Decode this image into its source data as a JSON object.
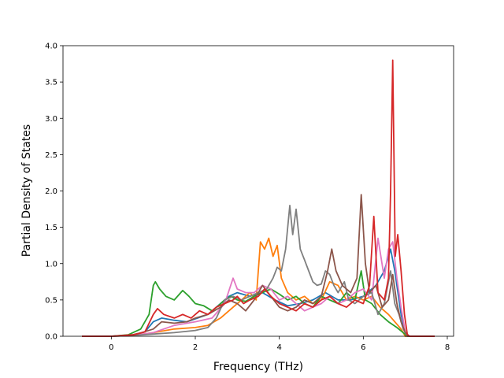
{
  "chart_data": {
    "type": "line",
    "title": "",
    "xlabel": "Frequency (THz)",
    "ylabel": "Partial Density of States",
    "xlim": [
      -1.15,
      8.15
    ],
    "ylim": [
      0,
      4.0
    ],
    "xticks": [
      0,
      2,
      4,
      6,
      8
    ],
    "xtick_labels": [
      "0",
      "2",
      "4",
      "6",
      "8"
    ],
    "yticks": [
      0.0,
      0.5,
      1.0,
      1.5,
      2.0,
      2.5,
      3.0,
      3.5,
      4.0
    ],
    "ytick_labels": [
      "0.0",
      "0.5",
      "1.0",
      "1.5",
      "2.0",
      "2.5",
      "3.0",
      "3.5",
      "4.0"
    ],
    "grid": false,
    "legend": "none",
    "series": [
      {
        "color": "#1f77b4",
        "points": [
          [
            -0.7,
            0
          ],
          [
            0,
            0
          ],
          [
            0.5,
            0.02
          ],
          [
            0.8,
            0.06
          ],
          [
            1.0,
            0.2
          ],
          [
            1.2,
            0.25
          ],
          [
            1.5,
            0.22
          ],
          [
            1.8,
            0.2
          ],
          [
            2.0,
            0.24
          ],
          [
            2.3,
            0.3
          ],
          [
            2.5,
            0.4
          ],
          [
            2.8,
            0.55
          ],
          [
            3.0,
            0.6
          ],
          [
            3.3,
            0.55
          ],
          [
            3.6,
            0.6
          ],
          [
            3.9,
            0.5
          ],
          [
            4.2,
            0.42
          ],
          [
            4.5,
            0.45
          ],
          [
            4.8,
            0.5
          ],
          [
            5.1,
            0.6
          ],
          [
            5.4,
            0.5
          ],
          [
            5.7,
            0.5
          ],
          [
            6.0,
            0.55
          ],
          [
            6.3,
            0.7
          ],
          [
            6.5,
            0.9
          ],
          [
            6.65,
            1.2
          ],
          [
            6.75,
            0.9
          ],
          [
            6.9,
            0.3
          ],
          [
            7.0,
            0.05
          ],
          [
            7.1,
            0
          ],
          [
            7.7,
            0
          ]
        ]
      },
      {
        "color": "#ff7f0e",
        "points": [
          [
            -0.7,
            0
          ],
          [
            0,
            0
          ],
          [
            0.5,
            0.01
          ],
          [
            1.0,
            0.05
          ],
          [
            1.5,
            0.1
          ],
          [
            2.0,
            0.12
          ],
          [
            2.3,
            0.15
          ],
          [
            2.6,
            0.25
          ],
          [
            2.9,
            0.4
          ],
          [
            3.1,
            0.5
          ],
          [
            3.3,
            0.6
          ],
          [
            3.45,
            0.5
          ],
          [
            3.55,
            1.3
          ],
          [
            3.65,
            1.2
          ],
          [
            3.75,
            1.35
          ],
          [
            3.85,
            1.1
          ],
          [
            3.95,
            1.25
          ],
          [
            4.05,
            0.8
          ],
          [
            4.2,
            0.6
          ],
          [
            4.4,
            0.5
          ],
          [
            4.6,
            0.55
          ],
          [
            4.8,
            0.45
          ],
          [
            5.0,
            0.5
          ],
          [
            5.2,
            0.75
          ],
          [
            5.4,
            0.7
          ],
          [
            5.6,
            0.5
          ],
          [
            5.8,
            0.55
          ],
          [
            6.0,
            0.5
          ],
          [
            6.2,
            0.55
          ],
          [
            6.4,
            0.4
          ],
          [
            6.6,
            0.3
          ],
          [
            6.75,
            0.2
          ],
          [
            6.9,
            0.1
          ],
          [
            7.0,
            0
          ],
          [
            7.7,
            0
          ]
        ]
      },
      {
        "color": "#2ca02c",
        "points": [
          [
            -0.7,
            0
          ],
          [
            0,
            0
          ],
          [
            0.4,
            0.02
          ],
          [
            0.7,
            0.1
          ],
          [
            0.9,
            0.3
          ],
          [
            1.0,
            0.7
          ],
          [
            1.05,
            0.75
          ],
          [
            1.15,
            0.65
          ],
          [
            1.3,
            0.55
          ],
          [
            1.5,
            0.5
          ],
          [
            1.7,
            0.63
          ],
          [
            1.85,
            0.55
          ],
          [
            2.0,
            0.45
          ],
          [
            2.2,
            0.42
          ],
          [
            2.4,
            0.35
          ],
          [
            2.55,
            0.42
          ],
          [
            2.7,
            0.5
          ],
          [
            2.85,
            0.55
          ],
          [
            3.0,
            0.5
          ],
          [
            3.2,
            0.48
          ],
          [
            3.4,
            0.55
          ],
          [
            3.6,
            0.6
          ],
          [
            3.8,
            0.65
          ],
          [
            4.0,
            0.58
          ],
          [
            4.2,
            0.5
          ],
          [
            4.4,
            0.55
          ],
          [
            4.6,
            0.45
          ],
          [
            4.8,
            0.4
          ],
          [
            5.0,
            0.55
          ],
          [
            5.2,
            0.5
          ],
          [
            5.4,
            0.45
          ],
          [
            5.6,
            0.6
          ],
          [
            5.8,
            0.5
          ],
          [
            5.95,
            0.9
          ],
          [
            6.05,
            0.5
          ],
          [
            6.2,
            0.45
          ],
          [
            6.4,
            0.3
          ],
          [
            6.6,
            0.2
          ],
          [
            6.8,
            0.12
          ],
          [
            6.95,
            0.05
          ],
          [
            7.05,
            0
          ],
          [
            7.7,
            0
          ]
        ]
      },
      {
        "color": "#e377c2",
        "points": [
          [
            -0.7,
            0
          ],
          [
            0,
            0
          ],
          [
            0.5,
            0.01
          ],
          [
            1.0,
            0.05
          ],
          [
            1.5,
            0.15
          ],
          [
            2.0,
            0.2
          ],
          [
            2.4,
            0.25
          ],
          [
            2.7,
            0.45
          ],
          [
            2.9,
            0.8
          ],
          [
            3.0,
            0.65
          ],
          [
            3.2,
            0.6
          ],
          [
            3.4,
            0.6
          ],
          [
            3.6,
            0.7
          ],
          [
            3.8,
            0.65
          ],
          [
            4.0,
            0.5
          ],
          [
            4.2,
            0.55
          ],
          [
            4.4,
            0.45
          ],
          [
            4.6,
            0.35
          ],
          [
            4.8,
            0.4
          ],
          [
            5.0,
            0.45
          ],
          [
            5.2,
            0.55
          ],
          [
            5.4,
            0.45
          ],
          [
            5.6,
            0.5
          ],
          [
            5.8,
            0.6
          ],
          [
            6.0,
            0.65
          ],
          [
            6.2,
            0.5
          ],
          [
            6.35,
            1.35
          ],
          [
            6.5,
            0.8
          ],
          [
            6.6,
            1.2
          ],
          [
            6.7,
            1.3
          ],
          [
            6.8,
            0.8
          ],
          [
            6.9,
            0.4
          ],
          [
            7.0,
            0.05
          ],
          [
            7.1,
            0
          ],
          [
            7.7,
            0
          ]
        ]
      },
      {
        "color": "#7f7f7f",
        "points": [
          [
            -0.7,
            0
          ],
          [
            0,
            0
          ],
          [
            0.5,
            0.01
          ],
          [
            1.0,
            0.03
          ],
          [
            1.5,
            0.05
          ],
          [
            2.0,
            0.08
          ],
          [
            2.3,
            0.12
          ],
          [
            2.5,
            0.25
          ],
          [
            2.7,
            0.5
          ],
          [
            2.9,
            0.55
          ],
          [
            3.1,
            0.5
          ],
          [
            3.3,
            0.55
          ],
          [
            3.5,
            0.6
          ],
          [
            3.7,
            0.65
          ],
          [
            3.85,
            0.8
          ],
          [
            3.95,
            0.95
          ],
          [
            4.05,
            0.9
          ],
          [
            4.15,
            1.2
          ],
          [
            4.25,
            1.8
          ],
          [
            4.32,
            1.4
          ],
          [
            4.4,
            1.75
          ],
          [
            4.5,
            1.2
          ],
          [
            4.6,
            1.05
          ],
          [
            4.7,
            0.9
          ],
          [
            4.8,
            0.75
          ],
          [
            4.9,
            0.7
          ],
          [
            5.0,
            0.72
          ],
          [
            5.1,
            0.9
          ],
          [
            5.2,
            0.85
          ],
          [
            5.3,
            0.7
          ],
          [
            5.4,
            0.6
          ],
          [
            5.55,
            0.75
          ],
          [
            5.65,
            0.5
          ],
          [
            5.8,
            0.45
          ],
          [
            6.0,
            0.55
          ],
          [
            6.2,
            0.6
          ],
          [
            6.35,
            0.3
          ],
          [
            6.5,
            0.45
          ],
          [
            6.65,
            0.9
          ],
          [
            6.75,
            0.45
          ],
          [
            6.85,
            0.3
          ],
          [
            6.95,
            0.1
          ],
          [
            7.05,
            0
          ],
          [
            7.7,
            0
          ]
        ]
      },
      {
        "color": "#8c564b",
        "points": [
          [
            -0.7,
            0
          ],
          [
            0,
            0
          ],
          [
            0.5,
            0.01
          ],
          [
            1.0,
            0.1
          ],
          [
            1.2,
            0.2
          ],
          [
            1.5,
            0.18
          ],
          [
            1.8,
            0.2
          ],
          [
            2.0,
            0.25
          ],
          [
            2.3,
            0.3
          ],
          [
            2.6,
            0.4
          ],
          [
            2.8,
            0.5
          ],
          [
            3.0,
            0.45
          ],
          [
            3.2,
            0.35
          ],
          [
            3.4,
            0.5
          ],
          [
            3.6,
            0.7
          ],
          [
            3.8,
            0.55
          ],
          [
            4.0,
            0.4
          ],
          [
            4.2,
            0.35
          ],
          [
            4.4,
            0.4
          ],
          [
            4.6,
            0.5
          ],
          [
            4.8,
            0.45
          ],
          [
            5.0,
            0.55
          ],
          [
            5.15,
            0.9
          ],
          [
            5.25,
            1.2
          ],
          [
            5.35,
            0.9
          ],
          [
            5.5,
            0.7
          ],
          [
            5.7,
            0.6
          ],
          [
            5.85,
            0.8
          ],
          [
            5.95,
            1.95
          ],
          [
            6.05,
            1.0
          ],
          [
            6.15,
            0.6
          ],
          [
            6.3,
            0.7
          ],
          [
            6.45,
            0.4
          ],
          [
            6.6,
            0.5
          ],
          [
            6.7,
            0.85
          ],
          [
            6.8,
            0.45
          ],
          [
            6.9,
            0.2
          ],
          [
            7.0,
            0.05
          ],
          [
            7.1,
            0
          ],
          [
            7.7,
            0
          ]
        ]
      },
      {
        "color": "#d62728",
        "points": [
          [
            -0.7,
            0
          ],
          [
            0,
            0
          ],
          [
            0.5,
            0.02
          ],
          [
            0.8,
            0.06
          ],
          [
            1.0,
            0.3
          ],
          [
            1.1,
            0.38
          ],
          [
            1.25,
            0.3
          ],
          [
            1.5,
            0.25
          ],
          [
            1.7,
            0.3
          ],
          [
            1.9,
            0.25
          ],
          [
            2.1,
            0.35
          ],
          [
            2.3,
            0.3
          ],
          [
            2.5,
            0.4
          ],
          [
            2.7,
            0.45
          ],
          [
            2.9,
            0.5
          ],
          [
            3.0,
            0.55
          ],
          [
            3.15,
            0.45
          ],
          [
            3.3,
            0.5
          ],
          [
            3.5,
            0.55
          ],
          [
            3.65,
            0.65
          ],
          [
            3.8,
            0.55
          ],
          [
            4.0,
            0.45
          ],
          [
            4.2,
            0.4
          ],
          [
            4.4,
            0.35
          ],
          [
            4.6,
            0.45
          ],
          [
            4.8,
            0.4
          ],
          [
            5.0,
            0.5
          ],
          [
            5.2,
            0.55
          ],
          [
            5.4,
            0.45
          ],
          [
            5.6,
            0.4
          ],
          [
            5.8,
            0.5
          ],
          [
            6.0,
            0.45
          ],
          [
            6.15,
            0.7
          ],
          [
            6.25,
            1.65
          ],
          [
            6.35,
            0.6
          ],
          [
            6.5,
            0.5
          ],
          [
            6.6,
            0.8
          ],
          [
            6.65,
            2.0
          ],
          [
            6.7,
            3.8
          ],
          [
            6.76,
            1.1
          ],
          [
            6.82,
            1.4
          ],
          [
            6.9,
            0.9
          ],
          [
            6.98,
            0.3
          ],
          [
            7.05,
            0.02
          ],
          [
            7.1,
            0
          ],
          [
            7.7,
            0
          ]
        ]
      }
    ]
  }
}
